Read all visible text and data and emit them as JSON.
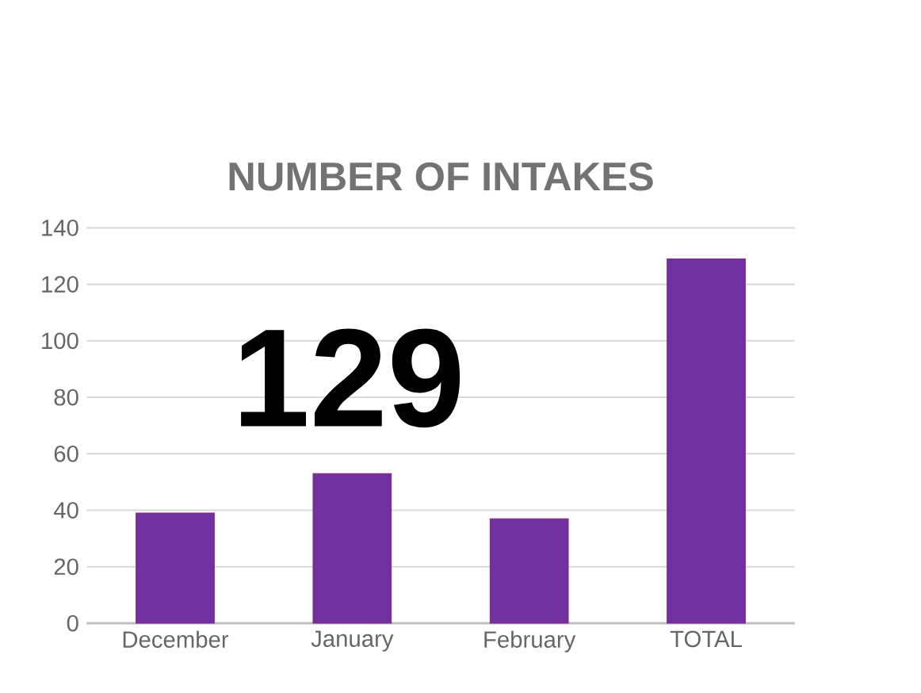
{
  "chart_data": {
    "type": "bar",
    "title": "NUMBER OF INTAKES",
    "categories": [
      "December",
      "January",
      "February",
      "TOTAL"
    ],
    "values": [
      39,
      53,
      37,
      129
    ],
    "color": "#7030a0",
    "ylim": [
      0,
      140
    ],
    "yticks": [
      0,
      20,
      40,
      60,
      80,
      100,
      120,
      140
    ],
    "grid": "y",
    "annotations": [
      "129"
    ]
  }
}
